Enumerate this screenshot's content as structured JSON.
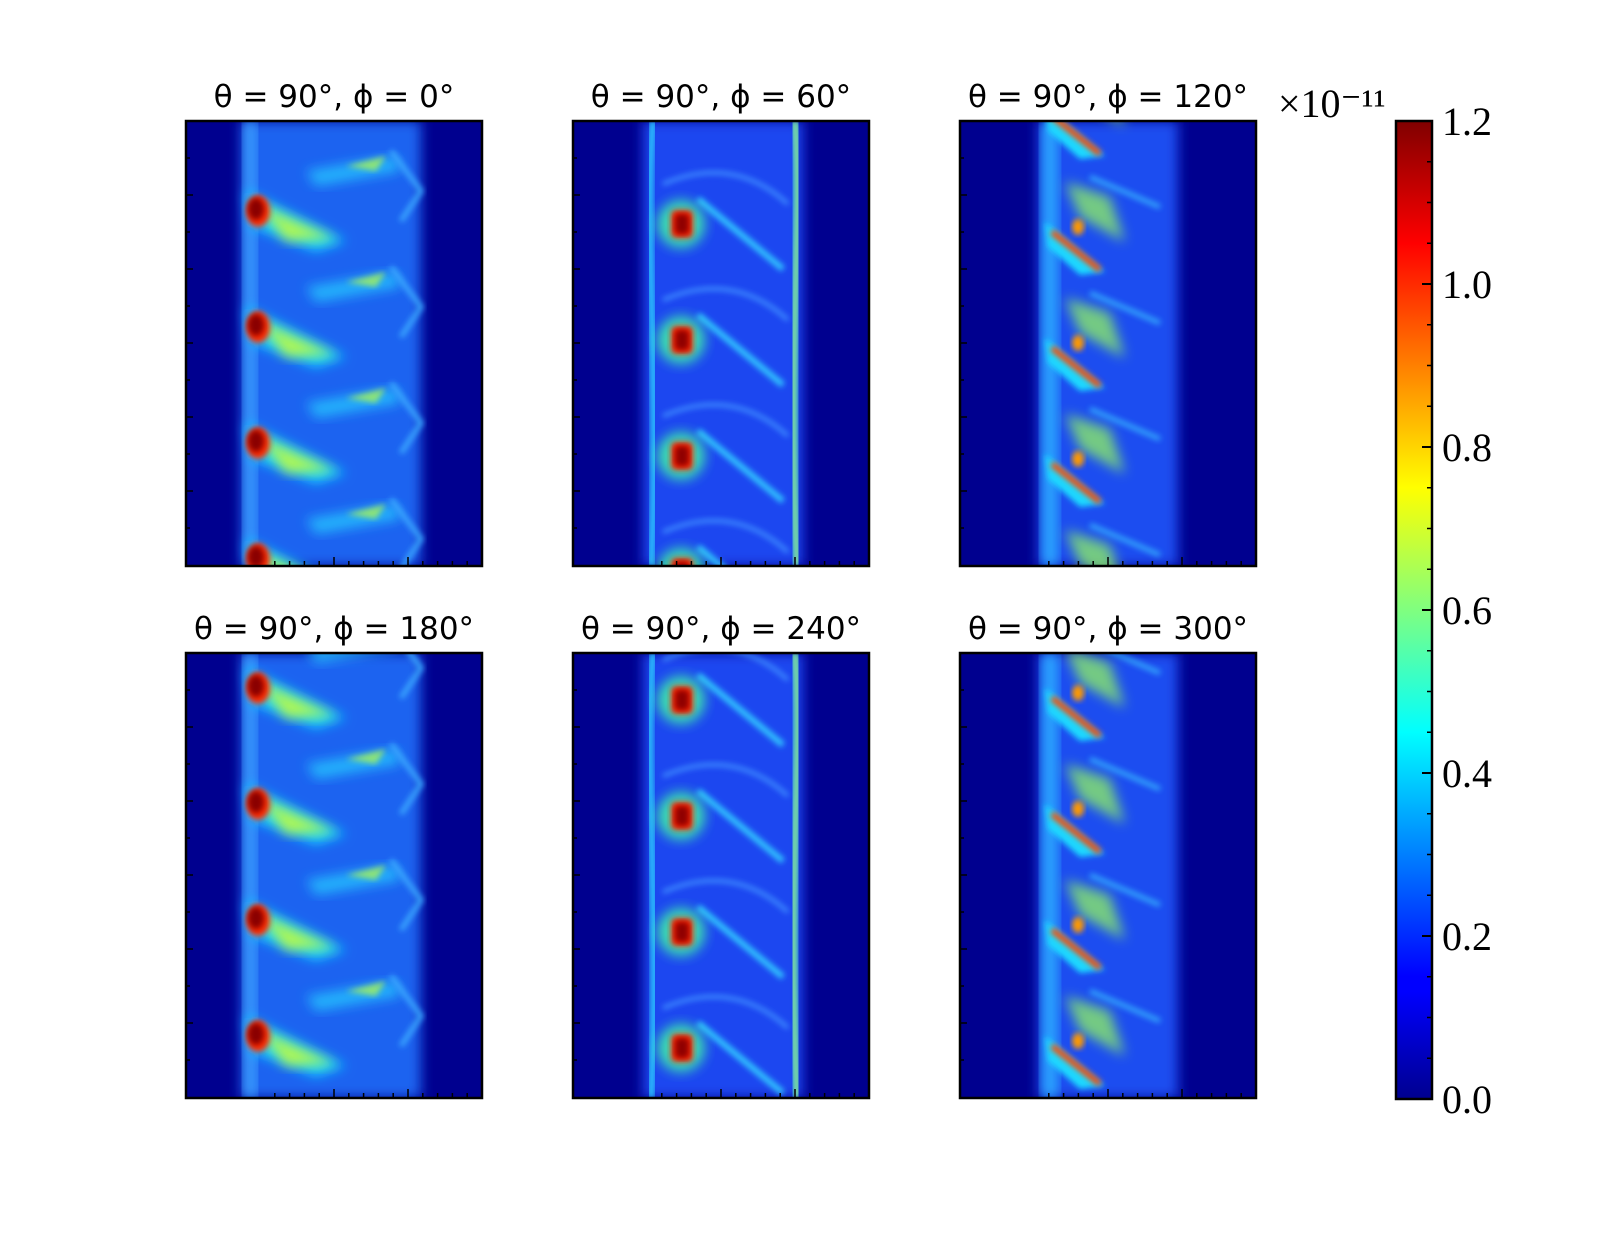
{
  "chart_data": {
    "type": "heatmap",
    "colormap": "jet",
    "grid": false,
    "panels": [
      {
        "title": "θ = 90°, ϕ = 0°",
        "theta": 90,
        "phi": 0,
        "pattern": "left-streaks"
      },
      {
        "title": "θ = 90°, ϕ = 60°",
        "theta": 90,
        "phi": 60,
        "pattern": "blobs"
      },
      {
        "title": "θ = 90°, ϕ = 120°",
        "theta": 90,
        "phi": 120,
        "pattern": "diagonal-streaks"
      },
      {
        "title": "θ = 90°, ϕ = 180°",
        "theta": 90,
        "phi": 180,
        "pattern": "left-streaks"
      },
      {
        "title": "θ = 90°, ϕ = 240°",
        "theta": 90,
        "phi": 240,
        "pattern": "blobs"
      },
      {
        "title": "θ = 90°, ϕ = 300°",
        "theta": 90,
        "phi": 300,
        "pattern": "diagonal-streaks"
      }
    ],
    "colorbar": {
      "min": 0.0,
      "max": 1.2,
      "ticks": [
        "0.0",
        "0.2",
        "0.4",
        "0.6",
        "0.8",
        "1.0",
        "1.2"
      ],
      "tick_values": [
        0.0,
        0.2,
        0.4,
        0.6,
        0.8,
        1.0,
        1.2
      ],
      "exponent_label": "×10⁻¹¹"
    }
  }
}
